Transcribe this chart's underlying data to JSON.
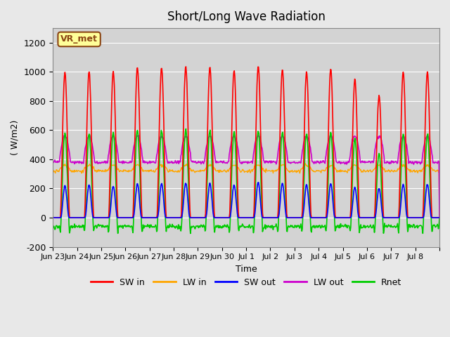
{
  "title": "Short/Long Wave Radiation",
  "xlabel": "Time",
  "ylabel": "( W/m2)",
  "ylim": [
    -200,
    1300
  ],
  "yticks": [
    -200,
    0,
    200,
    400,
    600,
    800,
    1000,
    1200
  ],
  "background_color": "#e8e8e8",
  "plot_bg_color": "#d3d3d3",
  "legend_labels": [
    "SW in",
    "LW in",
    "SW out",
    "LW out",
    "Rnet"
  ],
  "legend_colors": [
    "#ff0000",
    "#ffa500",
    "#0000ff",
    "#cc00cc",
    "#00cc00"
  ],
  "station_label": "VR_met",
  "n_days": 16,
  "tick_positions": [
    0,
    1,
    2,
    3,
    4,
    5,
    6,
    7,
    8,
    9,
    10,
    11,
    12,
    13,
    14,
    15,
    16
  ],
  "tick_labels": [
    "Jun 23",
    "Jun 24",
    "Jun 25",
    "Jun 26",
    "Jun 27",
    "Jun 28",
    "Jun 29",
    "Jun 30",
    "Jul 1",
    "Jul 2",
    "Jul 3",
    "Jul 4",
    "Jul 5",
    "Jul 6",
    "Jul 7",
    "Jul 8",
    ""
  ],
  "sw_in_peaks": [
    1000,
    1000,
    1000,
    1030,
    1030,
    1040,
    1030,
    1010,
    1040,
    1020,
    1000,
    1020,
    950,
    840,
    1000,
    1000
  ],
  "sw_out_peaks": [
    220,
    225,
    215,
    235,
    235,
    240,
    235,
    225,
    245,
    235,
    225,
    235,
    210,
    200,
    230,
    230
  ],
  "lw_in_base": 320,
  "lw_in_diurnal": 40,
  "lw_out_base": 380,
  "lw_out_diurnal": 180
}
